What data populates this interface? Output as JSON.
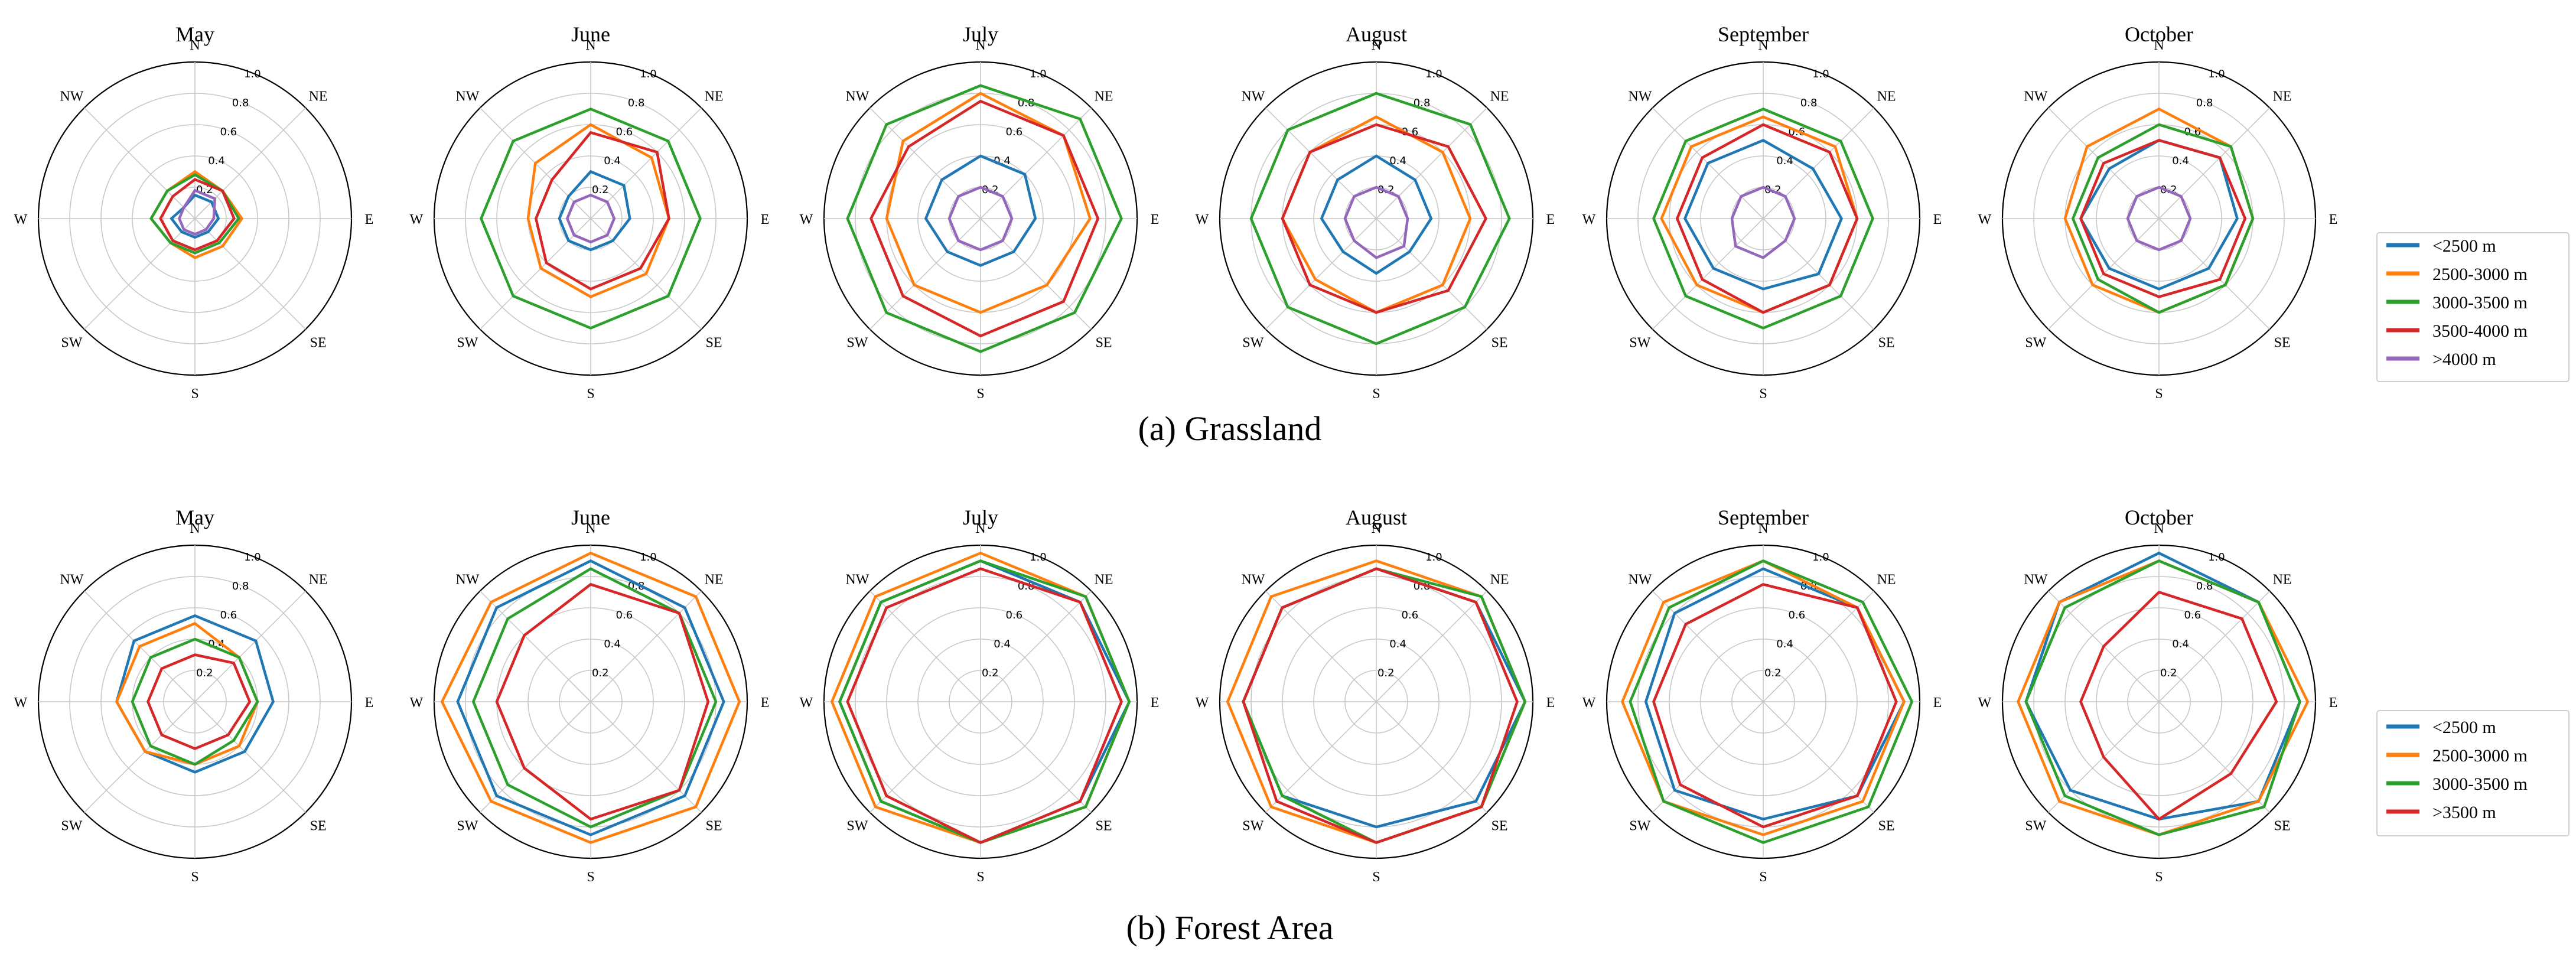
{
  "panels": [
    {
      "caption": "(a) Grassland",
      "legend": [
        "<2500 m",
        "2500-3000 m",
        "3000-3500 m",
        "3500-4000 m",
        ">4000 m"
      ],
      "legend_colors": [
        "#1f77b4",
        "#ff7f0e",
        "#2ca02c",
        "#d62728",
        "#9467bd"
      ]
    },
    {
      "caption": "(b) Forest Area",
      "legend": [
        "<2500 m",
        "2500-3000 m",
        "3000-3500 m",
        ">3500 m"
      ],
      "legend_colors": [
        "#1f77b4",
        "#ff7f0e",
        "#2ca02c",
        "#d62728"
      ]
    }
  ],
  "chart_data": [
    {
      "type": "radar",
      "panel": "(a) Grassland",
      "directions": [
        "N",
        "NE",
        "E",
        "SE",
        "S",
        "SW",
        "W",
        "NW"
      ],
      "rlim": [
        0,
        1.0
      ],
      "rticks": [
        "0.2",
        "0.4",
        "0.6",
        "0.8",
        "1.0"
      ],
      "charts": [
        {
          "title": "May",
          "series": [
            {
              "name": "<2500 m",
              "values": [
                0.15,
                0.15,
                0.15,
                0.12,
                0.12,
                0.12,
                0.15,
                0.1
              ]
            },
            {
              "name": "2500-3000 m",
              "values": [
                0.3,
                0.25,
                0.3,
                0.25,
                0.25,
                0.22,
                0.28,
                0.25
              ]
            },
            {
              "name": "3000-3500 m",
              "values": [
                0.28,
                0.25,
                0.28,
                0.22,
                0.22,
                0.22,
                0.28,
                0.25
              ]
            },
            {
              "name": "3500-4000 m",
              "values": [
                0.25,
                0.25,
                0.25,
                0.2,
                0.2,
                0.2,
                0.22,
                0.2
              ]
            },
            {
              "name": ">4000 m",
              "values": [
                0.18,
                0.18,
                0.12,
                0.1,
                0.1,
                0.1,
                0.1,
                0.1
              ]
            }
          ]
        },
        {
          "title": "June",
          "series": [
            {
              "name": "<2500 m",
              "values": [
                0.3,
                0.3,
                0.25,
                0.2,
                0.2,
                0.2,
                0.2,
                0.2
              ]
            },
            {
              "name": "2500-3000 m",
              "values": [
                0.6,
                0.55,
                0.5,
                0.5,
                0.5,
                0.45,
                0.4,
                0.5
              ]
            },
            {
              "name": "3000-3500 m",
              "values": [
                0.7,
                0.7,
                0.7,
                0.7,
                0.7,
                0.7,
                0.7,
                0.7
              ]
            },
            {
              "name": "3500-4000 m",
              "values": [
                0.55,
                0.6,
                0.5,
                0.45,
                0.45,
                0.4,
                0.35,
                0.35
              ]
            },
            {
              "name": ">4000 m",
              "values": [
                0.15,
                0.15,
                0.15,
                0.15,
                0.15,
                0.15,
                0.15,
                0.15
              ]
            }
          ]
        },
        {
          "title": "July",
          "series": [
            {
              "name": "<2500 m",
              "values": [
                0.4,
                0.4,
                0.35,
                0.3,
                0.3,
                0.3,
                0.35,
                0.35
              ]
            },
            {
              "name": "2500-3000 m",
              "values": [
                0.8,
                0.75,
                0.7,
                0.6,
                0.6,
                0.6,
                0.6,
                0.7
              ]
            },
            {
              "name": "3000-3500 m",
              "values": [
                0.85,
                0.9,
                0.9,
                0.85,
                0.85,
                0.85,
                0.85,
                0.85
              ]
            },
            {
              "name": "3500-4000 m",
              "values": [
                0.75,
                0.75,
                0.75,
                0.75,
                0.75,
                0.7,
                0.7,
                0.65
              ]
            },
            {
              "name": ">4000 m",
              "values": [
                0.2,
                0.2,
                0.2,
                0.2,
                0.2,
                0.2,
                0.2,
                0.2
              ]
            }
          ]
        },
        {
          "title": "August",
          "series": [
            {
              "name": "<2500 m",
              "values": [
                0.4,
                0.35,
                0.35,
                0.3,
                0.35,
                0.3,
                0.35,
                0.35
              ]
            },
            {
              "name": "2500-3000 m",
              "values": [
                0.65,
                0.6,
                0.6,
                0.6,
                0.6,
                0.55,
                0.6,
                0.6
              ]
            },
            {
              "name": "3000-3500 m",
              "values": [
                0.8,
                0.85,
                0.85,
                0.8,
                0.8,
                0.8,
                0.8,
                0.8
              ]
            },
            {
              "name": "3500-4000 m",
              "values": [
                0.6,
                0.65,
                0.7,
                0.65,
                0.6,
                0.6,
                0.6,
                0.6
              ]
            },
            {
              "name": ">4000 m",
              "values": [
                0.2,
                0.2,
                0.2,
                0.25,
                0.25,
                0.2,
                0.2,
                0.2
              ]
            }
          ]
        },
        {
          "title": "September",
          "series": [
            {
              "name": "<2500 m",
              "values": [
                0.5,
                0.45,
                0.5,
                0.5,
                0.45,
                0.45,
                0.5,
                0.5
              ]
            },
            {
              "name": "2500-3000 m",
              "values": [
                0.65,
                0.65,
                0.6,
                0.6,
                0.6,
                0.6,
                0.65,
                0.65
              ]
            },
            {
              "name": "3000-3500 m",
              "values": [
                0.7,
                0.7,
                0.7,
                0.7,
                0.7,
                0.7,
                0.7,
                0.7
              ]
            },
            {
              "name": "3500-4000 m",
              "values": [
                0.6,
                0.6,
                0.6,
                0.6,
                0.6,
                0.55,
                0.55,
                0.55
              ]
            },
            {
              "name": ">4000 m",
              "values": [
                0.2,
                0.2,
                0.2,
                0.2,
                0.25,
                0.25,
                0.2,
                0.2
              ]
            }
          ]
        },
        {
          "title": "October",
          "series": [
            {
              "name": "<2500 m",
              "values": [
                0.5,
                0.55,
                0.5,
                0.45,
                0.45,
                0.45,
                0.5,
                0.45
              ]
            },
            {
              "name": "2500-3000 m",
              "values": [
                0.7,
                0.65,
                0.6,
                0.6,
                0.6,
                0.6,
                0.6,
                0.65
              ]
            },
            {
              "name": "3000-3500 m",
              "values": [
                0.6,
                0.65,
                0.6,
                0.6,
                0.6,
                0.55,
                0.55,
                0.55
              ]
            },
            {
              "name": "3500-4000 m",
              "values": [
                0.5,
                0.55,
                0.55,
                0.55,
                0.5,
                0.5,
                0.5,
                0.5
              ]
            },
            {
              "name": ">4000 m",
              "values": [
                0.2,
                0.2,
                0.2,
                0.2,
                0.2,
                0.2,
                0.2,
                0.2
              ]
            }
          ]
        }
      ]
    },
    {
      "type": "radar",
      "panel": "(b) Forest Area",
      "directions": [
        "N",
        "NE",
        "E",
        "SE",
        "S",
        "SW",
        "W",
        "NW"
      ],
      "rlim": [
        0,
        1.0
      ],
      "rticks": [
        "0.2",
        "0.4",
        "0.6",
        "0.8",
        "1.0"
      ],
      "charts": [
        {
          "title": "May",
          "series": [
            {
              "name": "<2500 m",
              "values": [
                0.55,
                0.55,
                0.5,
                0.45,
                0.45,
                0.45,
                0.5,
                0.55
              ]
            },
            {
              "name": "2500-3000 m",
              "values": [
                0.5,
                0.4,
                0.4,
                0.4,
                0.4,
                0.45,
                0.5,
                0.5
              ]
            },
            {
              "name": "3000-3500 m",
              "values": [
                0.4,
                0.4,
                0.4,
                0.35,
                0.4,
                0.4,
                0.4,
                0.4
              ]
            },
            {
              "name": ">3500 m",
              "values": [
                0.3,
                0.35,
                0.35,
                0.3,
                0.3,
                0.3,
                0.3,
                0.3
              ]
            }
          ]
        },
        {
          "title": "June",
          "series": [
            {
              "name": "<2500 m",
              "values": [
                0.9,
                0.85,
                0.85,
                0.85,
                0.85,
                0.85,
                0.85,
                0.85
              ]
            },
            {
              "name": "2500-3000 m",
              "values": [
                0.95,
                0.95,
                0.95,
                0.95,
                0.9,
                0.9,
                0.95,
                0.9
              ]
            },
            {
              "name": "3000-3500 m",
              "values": [
                0.85,
                0.8,
                0.8,
                0.8,
                0.8,
                0.75,
                0.75,
                0.75
              ]
            },
            {
              "name": ">3500 m",
              "values": [
                0.75,
                0.8,
                0.75,
                0.8,
                0.75,
                0.6,
                0.6,
                0.6
              ]
            }
          ]
        },
        {
          "title": "July",
          "series": [
            {
              "name": "<2500 m",
              "values": [
                0.9,
                0.9,
                0.95,
                0.9,
                0.9,
                0.9,
                0.9,
                0.9
              ]
            },
            {
              "name": "2500-3000 m",
              "values": [
                0.95,
                0.95,
                0.95,
                0.95,
                0.9,
                0.95,
                0.95,
                0.95
              ]
            },
            {
              "name": "3000-3500 m",
              "values": [
                0.9,
                0.95,
                0.95,
                0.95,
                0.9,
                0.9,
                0.9,
                0.9
              ]
            },
            {
              "name": ">3500 m",
              "values": [
                0.85,
                0.9,
                0.9,
                0.9,
                0.9,
                0.85,
                0.85,
                0.85
              ]
            }
          ]
        },
        {
          "title": "August",
          "series": [
            {
              "name": "<2500 m",
              "values": [
                0.85,
                0.9,
                0.95,
                0.9,
                0.8,
                0.85,
                0.85,
                0.85
              ]
            },
            {
              "name": "2500-3000 m",
              "values": [
                0.9,
                0.95,
                0.95,
                0.95,
                0.9,
                0.95,
                0.95,
                0.95
              ]
            },
            {
              "name": "3000-3500 m",
              "values": [
                0.85,
                0.95,
                0.95,
                0.95,
                0.9,
                0.85,
                0.85,
                0.85
              ]
            },
            {
              "name": ">3500 m",
              "values": [
                0.85,
                0.9,
                0.9,
                0.95,
                0.9,
                0.9,
                0.85,
                0.85
              ]
            }
          ]
        },
        {
          "title": "September",
          "series": [
            {
              "name": "<2500 m",
              "values": [
                0.85,
                0.85,
                0.9,
                0.85,
                0.75,
                0.8,
                0.75,
                0.8
              ]
            },
            {
              "name": "2500-3000 m",
              "values": [
                0.9,
                0.85,
                0.9,
                0.9,
                0.85,
                0.9,
                0.9,
                0.9
              ]
            },
            {
              "name": "3000-3500 m",
              "values": [
                0.9,
                0.9,
                0.95,
                0.95,
                0.9,
                0.9,
                0.85,
                0.85
              ]
            },
            {
              "name": ">3500 m",
              "values": [
                0.75,
                0.85,
                0.85,
                0.85,
                0.8,
                0.75,
                0.7,
                0.7
              ]
            }
          ]
        },
        {
          "title": "October",
          "series": [
            {
              "name": "<2500 m",
              "values": [
                0.95,
                0.9,
                0.9,
                0.9,
                0.75,
                0.8,
                0.85,
                0.9
              ]
            },
            {
              "name": "2500-3000 m",
              "values": [
                0.9,
                0.9,
                0.95,
                0.9,
                0.85,
                0.9,
                0.9,
                0.9
              ]
            },
            {
              "name": "3000-3500 m",
              "values": [
                0.9,
                0.9,
                0.9,
                0.95,
                0.85,
                0.85,
                0.85,
                0.85
              ]
            },
            {
              "name": ">3500 m",
              "values": [
                0.7,
                0.75,
                0.75,
                0.65,
                0.75,
                0.5,
                0.5,
                0.5
              ]
            }
          ]
        }
      ]
    }
  ]
}
